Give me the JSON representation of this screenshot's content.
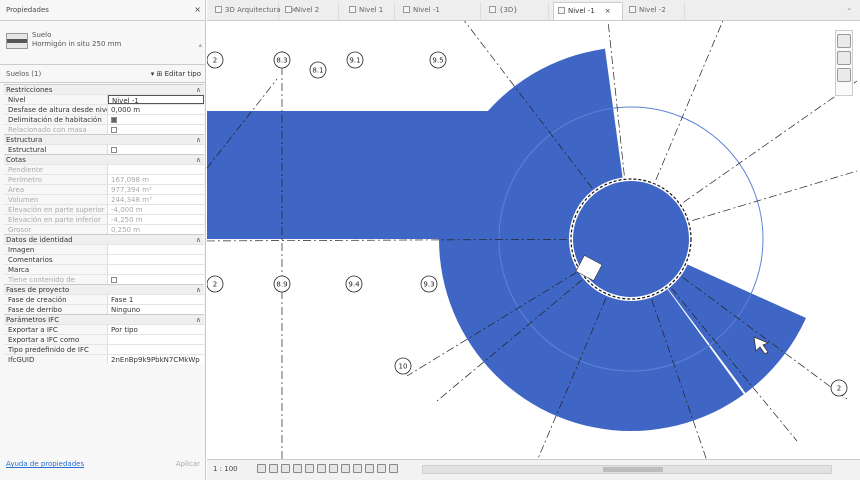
{
  "properties": {
    "title": "Propiedades",
    "close": "×",
    "type_name": "Suelo",
    "type_subname": "Hormigón in situ 250 mm",
    "instance_label": "Suelos (1)",
    "edit_type": "Editar tipo",
    "sections": [
      {
        "title": "Restricciones",
        "rows": [
          {
            "k": "Nivel",
            "v": "Nivel -1",
            "boxed": true
          },
          {
            "k": "Desfase de altura desde nivel",
            "v": "0,000 m"
          },
          {
            "k": "Delimitación de habitación",
            "v": "",
            "check": "on"
          },
          {
            "k": "Relacionado con masa",
            "v": "",
            "check": "off",
            "dim": true
          }
        ]
      },
      {
        "title": "Estructura",
        "rows": [
          {
            "k": "Estructural",
            "v": "",
            "check": "off"
          }
        ]
      },
      {
        "title": "Cotas",
        "rows": [
          {
            "k": "Pendiente",
            "v": "",
            "dim": true
          },
          {
            "k": "Perímetro",
            "v": "167,098 m",
            "dim": true
          },
          {
            "k": "Área",
            "v": "977,394 m²",
            "dim": true
          },
          {
            "k": "Volumen",
            "v": "244,348 m³",
            "dim": true
          },
          {
            "k": "Elevación en parte superior",
            "v": "-4,000 m",
            "dim": true
          },
          {
            "k": "Elevación en parte inferior",
            "v": "-4,250 m",
            "dim": true
          },
          {
            "k": "Grosor",
            "v": "0,250 m",
            "dim": true
          }
        ]
      },
      {
        "title": "Datos de identidad",
        "rows": [
          {
            "k": "Imagen",
            "v": ""
          },
          {
            "k": "Comentarios",
            "v": ""
          },
          {
            "k": "Marca",
            "v": ""
          },
          {
            "k": "Tiene contenido de",
            "v": "",
            "check": "off",
            "dim": true
          }
        ]
      },
      {
        "title": "Fases de proyecto",
        "rows": [
          {
            "k": "Fase de creación",
            "v": "Fase 1"
          },
          {
            "k": "Fase de derribo",
            "v": "Ninguno"
          }
        ]
      },
      {
        "title": "Parámetros IFC",
        "rows": [
          {
            "k": "Exportar a IFC",
            "v": "Por tipo"
          },
          {
            "k": "Exportar a IFC como",
            "v": ""
          },
          {
            "k": "Tipo predefinido de IFC",
            "v": ""
          },
          {
            "k": "IfcGUID",
            "v": "2nEnBp9k9PbkN7CMkWp"
          }
        ]
      }
    ],
    "help_link": "Ayuda de propiedades",
    "apply": "Aplicar"
  },
  "tabs": [
    {
      "label": "3D Arquitectura",
      "close": "×"
    },
    {
      "label": "Nivel 2",
      "close": ""
    },
    {
      "label": "Nivel 1",
      "close": ""
    },
    {
      "label": "Nivel -1",
      "close": ""
    },
    {
      "label": "{3D}",
      "close": ""
    },
    {
      "label": "Nivel -1",
      "close": "×"
    },
    {
      "label": "Nivel -2",
      "close": ""
    }
  ],
  "tabs_more": "⌄",
  "grid_bubbles": [
    "2",
    "8.3",
    "8.1",
    "9.1",
    "9.5",
    "2",
    "8.9",
    "9.4",
    "9.3",
    "10",
    "2"
  ],
  "floor_color": "#3f66c4",
  "status": {
    "scale": "1 : 100"
  }
}
